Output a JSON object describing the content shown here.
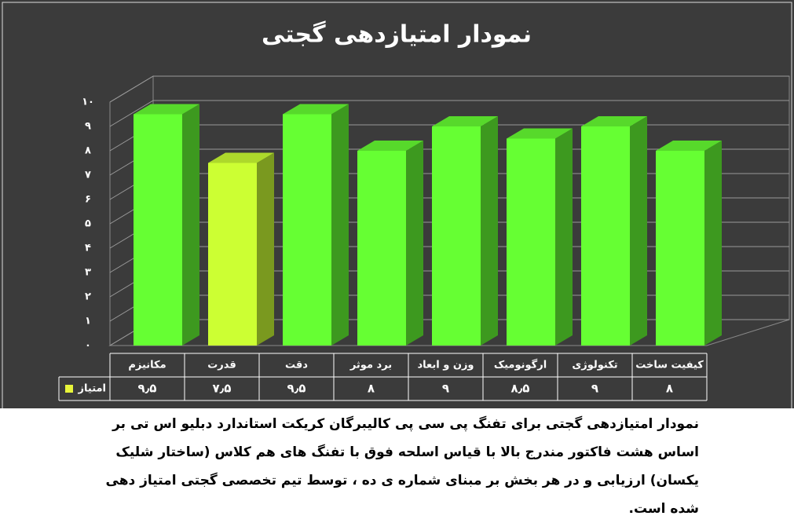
{
  "chart_data": {
    "type": "bar3d",
    "title": "نمودار امتیازدهی گجتی",
    "categories": [
      "مکانیزم",
      "قدرت",
      "دقت",
      "برد موثر",
      "وزن و ابعاد",
      "ارگونومیک",
      "تکنولوژی",
      "کیفیت ساخت"
    ],
    "series": [
      {
        "name": "امتیاز",
        "color": "#e8f53a",
        "values": [
          9.5,
          7.5,
          9.5,
          8,
          9,
          8.5,
          9,
          8
        ],
        "value_labels": [
          "۹٫۵",
          "۷٫۵",
          "۹٫۵",
          "۸",
          "۹",
          "۸٫۵",
          "۹",
          "۸"
        ],
        "colors": [
          "#66ff33",
          "#ccff33",
          "#66ff33",
          "#66ff33",
          "#66ff33",
          "#66ff33",
          "#66ff33",
          "#66ff33"
        ]
      }
    ],
    "ylim": [
      0,
      10
    ],
    "yticks": [
      {
        "value": 0,
        "label": "۰"
      },
      {
        "value": 1,
        "label": "۱"
      },
      {
        "value": 2,
        "label": "۲"
      },
      {
        "value": 3,
        "label": "۳"
      },
      {
        "value": 4,
        "label": "۴"
      },
      {
        "value": 5,
        "label": "۵"
      },
      {
        "value": 6,
        "label": "۶"
      },
      {
        "value": 7,
        "label": "۷"
      },
      {
        "value": 8,
        "label": "۸"
      },
      {
        "value": 9,
        "label": "۹"
      },
      {
        "value": 10,
        "label": "۱۰"
      }
    ],
    "grid": true,
    "note": "نمودار امتیازدهی گجتی برای تفنگ پی سی پی  کالیبرگان کریکت استاندارد دبلیو اس تی بر اساس هشت فاکتور مندرج بالا با قیاس اسلحه فوق با تفنگ های هم کلاس (ساختار شلیک یکسان) ارزیابی و در هر بخش بر مبنای شماره ی ده ، توسط تیم تخصصی گجتی امتیاز دهی شده است."
  }
}
